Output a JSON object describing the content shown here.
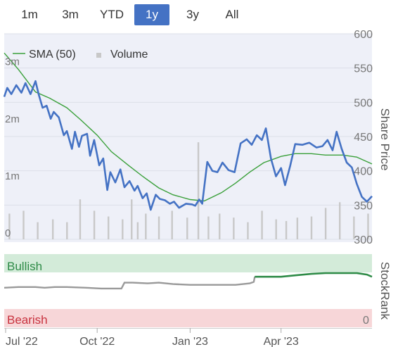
{
  "range_tabs": [
    {
      "label": "1m",
      "active": false
    },
    {
      "label": "3m",
      "active": false
    },
    {
      "label": "YTD",
      "active": false
    },
    {
      "label": "1y",
      "active": true
    },
    {
      "label": "3y",
      "active": false
    },
    {
      "label": "All",
      "active": false
    }
  ],
  "colors": {
    "price": "#4472c4",
    "sma": "#3aa03a",
    "volume": "#c8c8c8",
    "bullish_band": "#d3ebd9",
    "bearish_band": "#f7d6d8",
    "bullish_text": "#2e8b47",
    "bearish_text": "#c8323e",
    "rank_line": "#999999",
    "rank_line_bullish": "#2e8b47",
    "active_tab": "#4472c4"
  },
  "chart_data": [
    {
      "type": "line",
      "legend": [
        {
          "label": "SMA (50)",
          "marker": "line"
        },
        {
          "label": "Volume",
          "marker": "square"
        }
      ],
      "y_right_label": "Share Price",
      "y_right_ticks": [
        "600",
        "550",
        "500",
        "450",
        "400",
        "350",
        "300"
      ],
      "y_right_range": [
        300,
        600
      ],
      "y_left_ticks": [
        "3m",
        "2m",
        "1m",
        "0"
      ],
      "y_left_range": [
        0,
        3600000
      ],
      "x_range": [
        "2022-07-01",
        "2023-06-30"
      ],
      "grid": true,
      "legend_position": "top-left",
      "series": [
        {
          "name": "",
          "x": [
            "2022-07-01",
            "2022-07-04",
            "2022-07-08",
            "2022-07-13",
            "2022-07-18",
            "2022-07-22",
            "2022-07-27",
            "2022-08-01",
            "2022-08-04",
            "2022-08-08",
            "2022-08-12",
            "2022-08-16",
            "2022-08-19",
            "2022-08-24",
            "2022-08-29",
            "2022-09-01",
            "2022-09-06",
            "2022-09-09",
            "2022-09-13",
            "2022-09-16",
            "2022-09-21",
            "2022-09-24",
            "2022-09-28",
            "2022-10-03",
            "2022-10-07",
            "2022-10-11",
            "2022-10-14",
            "2022-10-19",
            "2022-10-24",
            "2022-10-28",
            "2022-11-02",
            "2022-11-07",
            "2022-11-10",
            "2022-11-15",
            "2022-11-19",
            "2022-11-23",
            "2022-11-28",
            "2022-12-02",
            "2022-12-07",
            "2022-12-12",
            "2022-12-16",
            "2022-12-21",
            "2022-12-28",
            "2023-01-03",
            "2023-01-06",
            "2023-01-10",
            "2023-01-13",
            "2023-01-18",
            "2023-01-23",
            "2023-01-28",
            "2023-02-02",
            "2023-02-08",
            "2023-02-14",
            "2023-02-20",
            "2023-02-26",
            "2023-03-03",
            "2023-03-08",
            "2023-03-13",
            "2023-03-17",
            "2023-03-22",
            "2023-03-27",
            "2023-04-01",
            "2023-04-05",
            "2023-04-10",
            "2023-04-15",
            "2023-04-22",
            "2023-04-29",
            "2023-05-06",
            "2023-05-12",
            "2023-05-17",
            "2023-05-22",
            "2023-05-26",
            "2023-05-31",
            "2023-06-05",
            "2023-06-10",
            "2023-06-15",
            "2023-06-20",
            "2023-06-25",
            "2023-06-30"
          ],
          "values": [
            508,
            521,
            512,
            525,
            514,
            528,
            512,
            531,
            512,
            492,
            495,
            476,
            486,
            478,
            452,
            458,
            432,
            457,
            435,
            451,
            454,
            422,
            445,
            408,
            418,
            372,
            398,
            383,
            402,
            376,
            385,
            371,
            378,
            360,
            367,
            343,
            365,
            359,
            357,
            352,
            355,
            346,
            352,
            351,
            349,
            358,
            352,
            413,
            400,
            398,
            412,
            401,
            398,
            440,
            446,
            438,
            452,
            445,
            462,
            418,
            392,
            404,
            379,
            407,
            439,
            438,
            441,
            434,
            436,
            445,
            430,
            457,
            432,
            412,
            405,
            381,
            362,
            355,
            363
          ]
        },
        {
          "name": "SMA (50)",
          "x": [
            "2022-07-01",
            "2022-07-15",
            "2022-08-01",
            "2022-08-15",
            "2022-09-01",
            "2022-09-15",
            "2022-10-01",
            "2022-10-15",
            "2022-11-01",
            "2022-11-15",
            "2022-12-01",
            "2022-12-15",
            "2023-01-01",
            "2023-01-15",
            "2023-02-01",
            "2023-02-15",
            "2023-03-01",
            "2023-03-15",
            "2023-04-01",
            "2023-04-15",
            "2023-05-01",
            "2023-05-15",
            "2023-06-01",
            "2023-06-15",
            "2023-06-30"
          ],
          "values": [
            572,
            548,
            515,
            506,
            492,
            474,
            452,
            428,
            408,
            392,
            375,
            365,
            358,
            356,
            368,
            382,
            398,
            412,
            421,
            425,
            425,
            423,
            423,
            420,
            410
          ]
        }
      ],
      "volume": {
        "x": [
          "2022-07-06",
          "2022-07-20",
          "2022-08-03",
          "2022-08-18",
          "2022-09-01",
          "2022-09-14",
          "2022-09-28",
          "2022-10-12",
          "2022-10-26",
          "2022-11-04",
          "2022-11-10",
          "2022-11-18",
          "2022-12-01",
          "2022-12-14",
          "2022-12-29",
          "2023-01-09",
          "2023-01-19",
          "2023-01-30",
          "2023-02-13",
          "2023-02-27",
          "2023-03-13",
          "2023-03-27",
          "2023-04-06",
          "2023-04-17",
          "2023-05-01",
          "2023-05-15",
          "2023-05-29",
          "2023-06-12",
          "2023-06-26"
        ],
        "values": [
          450000,
          500000,
          300000,
          350000,
          300000,
          700000,
          500000,
          400000,
          350000,
          700000,
          300000,
          450000,
          400000,
          500000,
          380000,
          1700000,
          400000,
          450000,
          380000,
          300000,
          500000,
          350000,
          320000,
          380000,
          400000,
          550000,
          650000,
          400000,
          450000
        ]
      }
    },
    {
      "type": "line",
      "y_right_label": "StockRank",
      "bands": [
        "Bullish",
        "Bearish"
      ],
      "y_right_ticks": [
        "0"
      ],
      "y_range": [
        0,
        100
      ],
      "series": [
        {
          "name": "",
          "x": [
            "2022-07-01",
            "2022-07-15",
            "2022-08-01",
            "2022-08-10",
            "2022-08-20",
            "2022-09-01",
            "2022-09-20",
            "2022-10-05",
            "2022-10-15",
            "2022-10-25",
            "2022-10-28",
            "2022-11-05",
            "2022-11-20",
            "2022-12-01",
            "2022-12-15",
            "2023-01-01",
            "2023-01-15",
            "2023-02-01",
            "2023-02-15",
            "2023-03-01",
            "2023-03-05",
            "2023-03-06"
          ],
          "values": [
            54,
            55,
            55,
            54,
            55,
            55,
            54,
            53,
            53,
            53,
            61,
            61,
            60,
            61,
            59,
            58,
            58,
            58,
            58,
            60,
            62,
            69
          ]
        },
        {
          "name": "",
          "x": [
            "2023-03-06",
            "2023-03-15",
            "2023-04-01",
            "2023-04-15",
            "2023-05-01",
            "2023-05-15",
            "2023-06-01",
            "2023-06-15",
            "2023-06-25",
            "2023-06-30"
          ],
          "values": [
            69,
            69,
            69,
            71,
            73,
            74,
            74,
            74,
            72,
            69
          ]
        }
      ]
    }
  ],
  "x_axis_labels": [
    {
      "label": "Jul '22",
      "date": "2022-07-01"
    },
    {
      "label": "Oct '22",
      "date": "2022-10-01"
    },
    {
      "label": "Jan '23",
      "date": "2023-01-01"
    },
    {
      "label": "Apr '23",
      "date": "2023-04-01"
    }
  ]
}
